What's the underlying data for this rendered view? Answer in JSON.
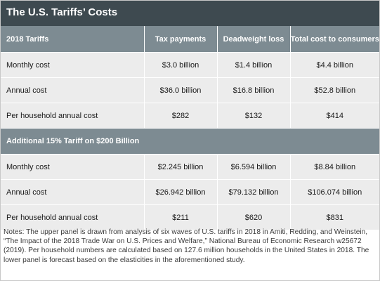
{
  "title": "The U.S. Tariffs’ Costs",
  "columns": [
    "Tax payments",
    "Deadweight loss",
    "Total cost to consumers"
  ],
  "panels": [
    {
      "heading": "2018 Tariffs",
      "rows": [
        {
          "label": "Monthly cost",
          "values": [
            "$3.0 billion",
            "$1.4 billion",
            "$4.4 billion"
          ]
        },
        {
          "label": "Annual cost",
          "values": [
            "$36.0 billion",
            "$16.8 billion",
            "$52.8 billion"
          ]
        },
        {
          "label": "Per household annual cost",
          "values": [
            "$282",
            "$132",
            "$414"
          ]
        }
      ]
    },
    {
      "heading": "Additional 15% Tariff on $200 Billion",
      "rows": [
        {
          "label": "Monthly cost",
          "values": [
            "$2.245 billion",
            "$6.594 billion",
            "$8.84 billion"
          ]
        },
        {
          "label": "Annual cost",
          "values": [
            "$26.942 billion",
            "$79.132 billion",
            "$106.074 billion"
          ]
        },
        {
          "label": "Per household annual cost",
          "values": [
            "$211",
            "$620",
            "$831"
          ]
        }
      ]
    }
  ],
  "notes": "Notes: The upper panel is drawn from analysis of six waves of U.S. tariffs in 2018 in Amiti, Redding, and Weinstein, “The Impact of the 2018 Trade War on U.S. Prices and Welfare,” National Bureau of Economic Research w25672 (2019). Per household numbers are calculated based on 127.6 million households in the United States in 2018. The lower panel is forecast based on the elasticities in the aforementioned study."
}
